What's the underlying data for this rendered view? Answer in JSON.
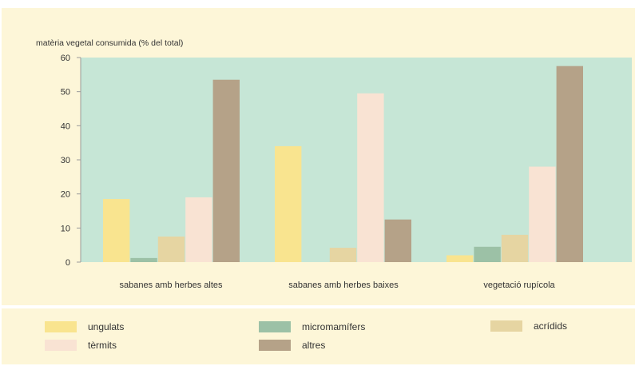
{
  "chart_data": {
    "type": "bar",
    "ylabel": "matèria vegetal consumida (% del total)",
    "ylim": [
      0,
      60
    ],
    "yticks": [
      "0",
      "10",
      "20",
      "30",
      "40",
      "50",
      "60"
    ],
    "categories": [
      "sabanes amb herbes altes",
      "sabanes amb herbes baixes",
      "vegetació rupícola"
    ],
    "series": [
      {
        "name": "ungulats",
        "color": "#f9e48f",
        "values": [
          18.5,
          34,
          2
        ]
      },
      {
        "name": "micromamífers",
        "color": "#9cc1a6",
        "values": [
          1.2,
          0,
          4.5
        ]
      },
      {
        "name": "acrídids",
        "color": "#e6d5a2",
        "values": [
          7.5,
          4.2,
          8
        ]
      },
      {
        "name": "tèrmits",
        "color": "#f9e3d3",
        "values": [
          19,
          49.5,
          28
        ]
      },
      {
        "name": "altres",
        "color": "#b5a288",
        "values": [
          53.5,
          12.5,
          57.5
        ]
      }
    ],
    "plot_bg": "#c6e6d6",
    "grid": false,
    "legend_position": "bottom"
  }
}
